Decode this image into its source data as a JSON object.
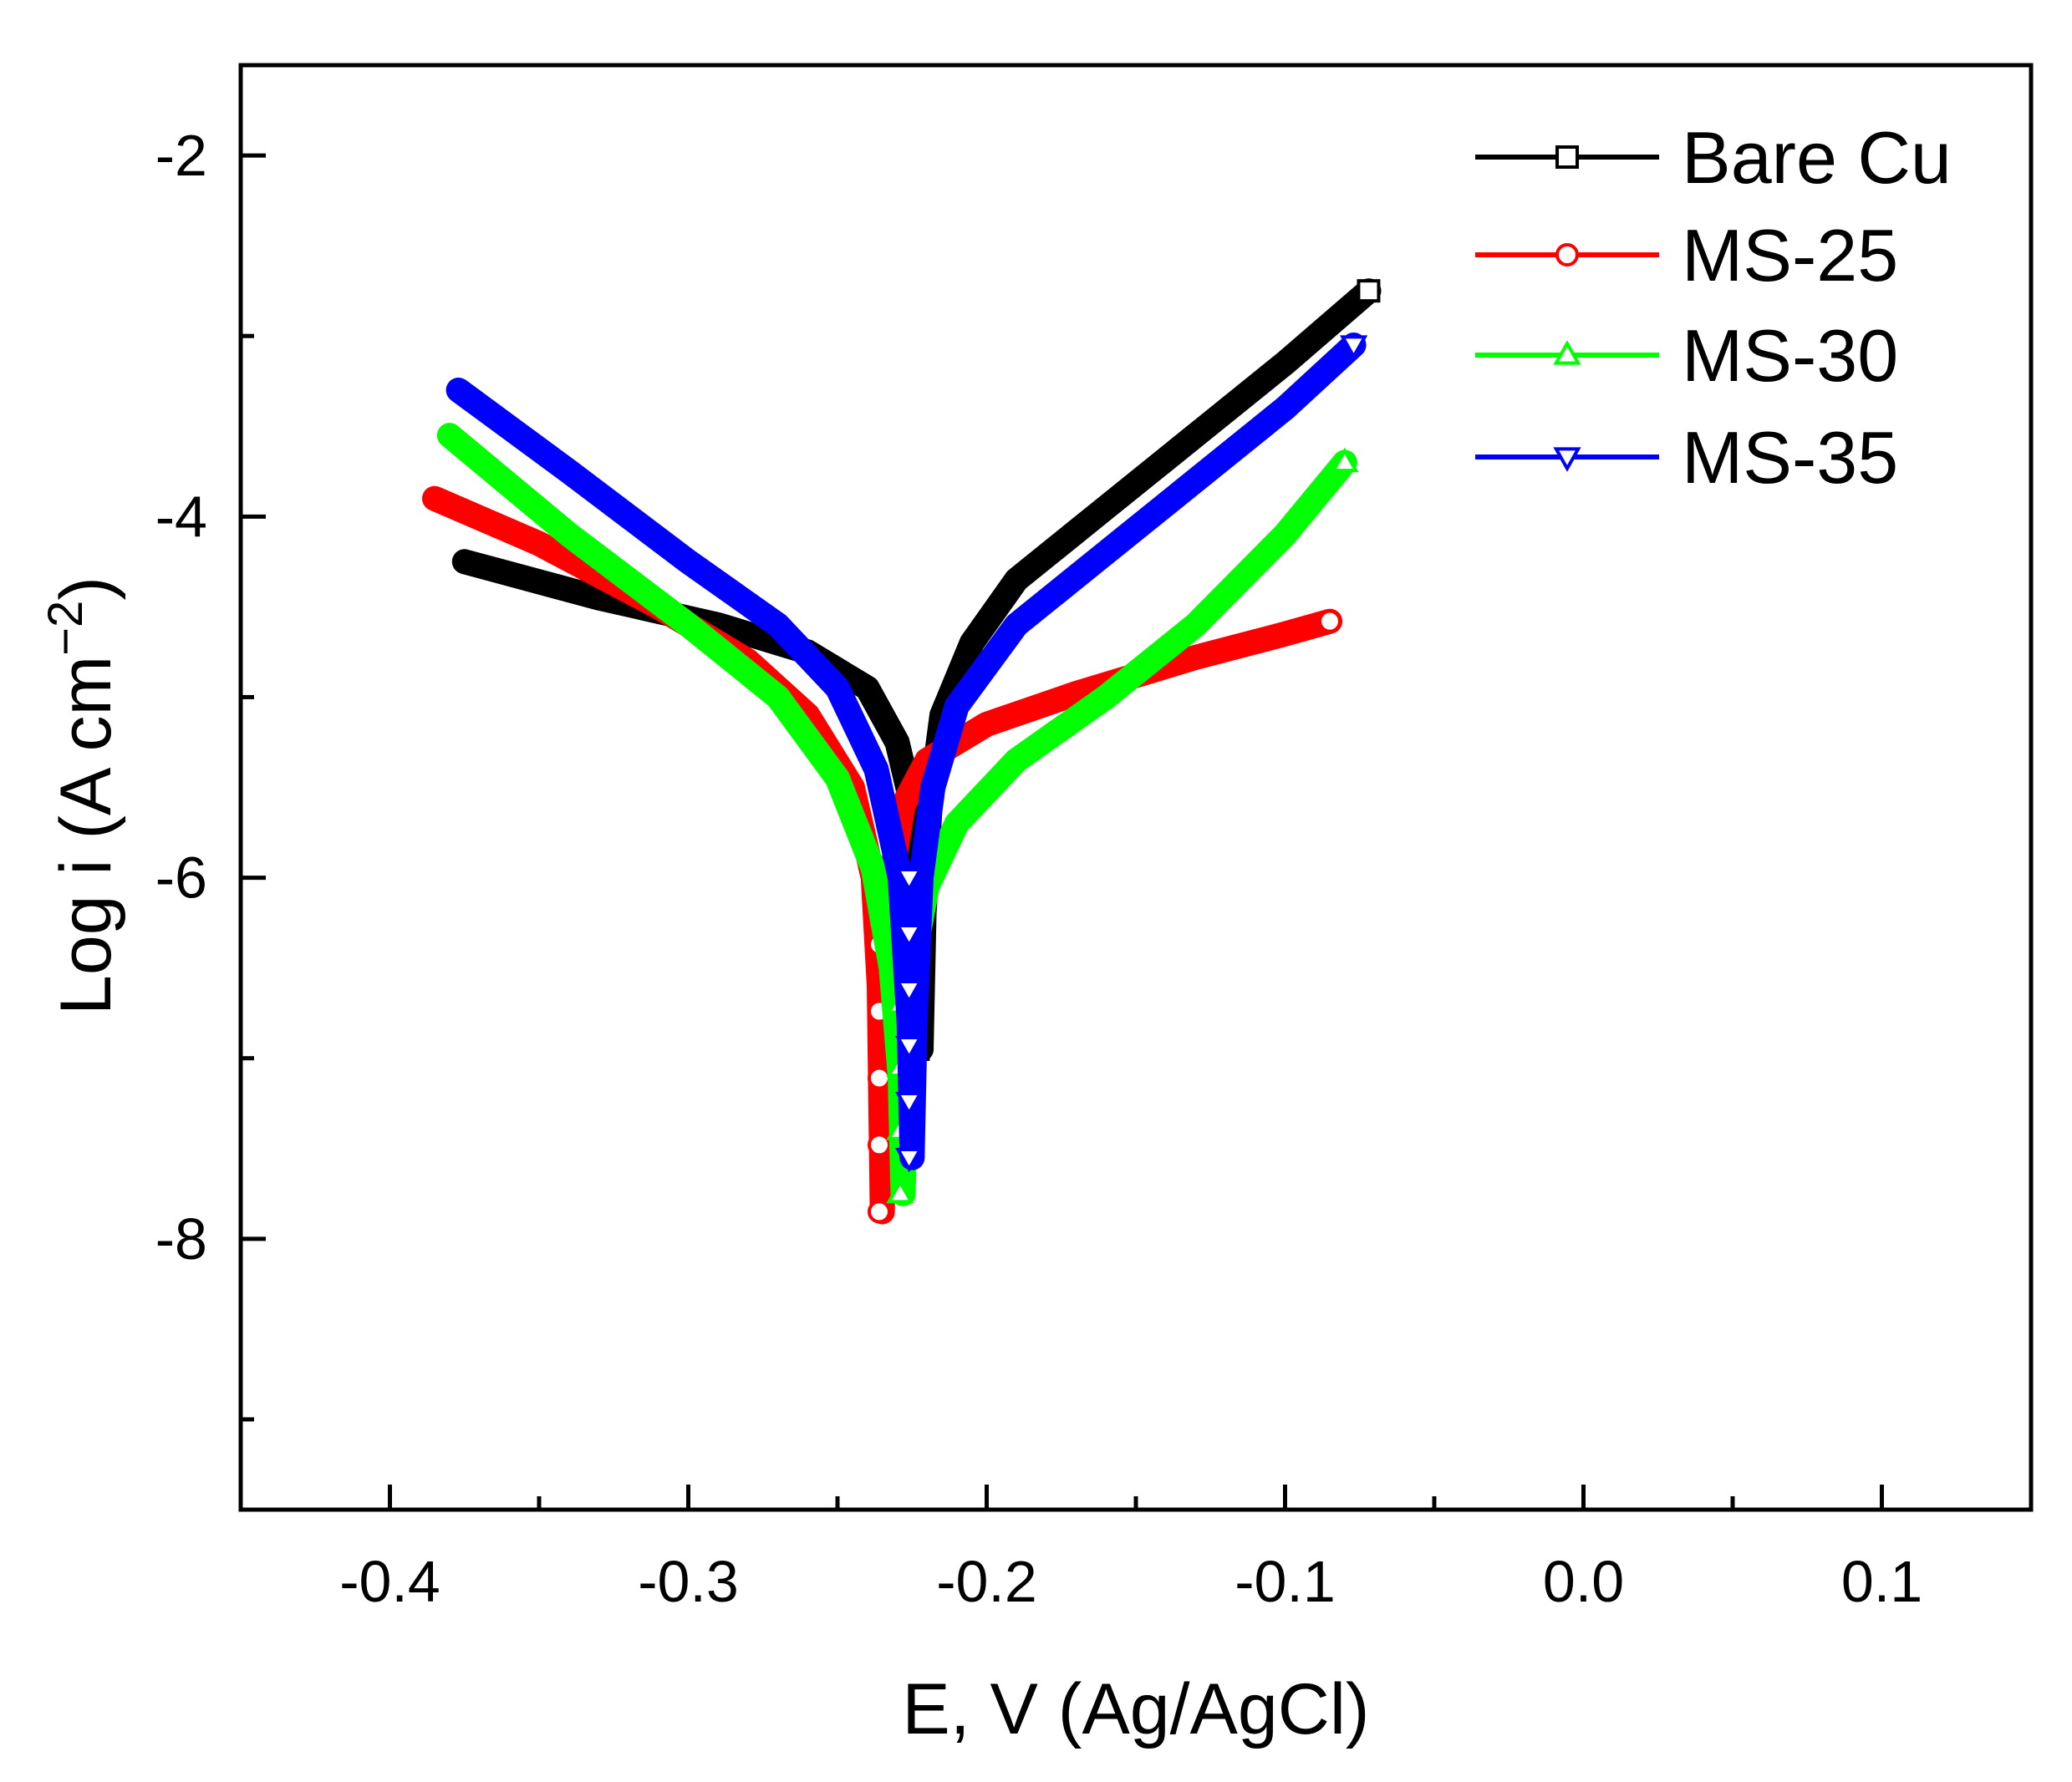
{
  "chart_data": {
    "type": "line",
    "title": "",
    "xlabel": "E, V (Ag/AgCl)",
    "ylabel_main": "Log i (A cm",
    "ylabel_sup": "−2",
    "ylabel_close": ")",
    "xlim": [
      -0.45,
      0.15
    ],
    "ylim": [
      -9.5,
      -1.5
    ],
    "xticks": [
      -0.4,
      -0.3,
      -0.2,
      -0.1,
      0.0,
      0.1
    ],
    "xtick_labels": [
      "-0.4",
      "-0.3",
      "-0.2",
      "-0.1",
      "0.0",
      "0.1"
    ],
    "yticks": [
      -2,
      -4,
      -6,
      -8
    ],
    "ytick_labels": [
      "-2",
      "-4",
      "-6",
      "-8"
    ],
    "legend_position": "top-right",
    "series": [
      {
        "name": "Bare Cu",
        "color": "#000000",
        "marker": "square",
        "ecorr": -0.222,
        "min_log_i": -6.95,
        "cathodic": [
          [
            -0.375,
            -4.25
          ],
          [
            -0.33,
            -4.45
          ],
          [
            -0.29,
            -4.6
          ],
          [
            -0.26,
            -4.75
          ],
          [
            -0.24,
            -4.95
          ],
          [
            -0.23,
            -5.25
          ],
          [
            -0.225,
            -5.6
          ],
          [
            -0.223,
            -6.2
          ],
          [
            -0.222,
            -6.95
          ]
        ],
        "anodic": [
          [
            -0.222,
            -6.95
          ],
          [
            -0.221,
            -6.2
          ],
          [
            -0.219,
            -5.6
          ],
          [
            -0.215,
            -5.1
          ],
          [
            -0.205,
            -4.7
          ],
          [
            -0.19,
            -4.35
          ],
          [
            -0.16,
            -3.95
          ],
          [
            -0.13,
            -3.55
          ],
          [
            -0.1,
            -3.15
          ],
          [
            -0.072,
            -2.75
          ]
        ]
      },
      {
        "name": "MS-25",
        "color": "#ff0000",
        "marker": "circle",
        "ecorr": -0.235,
        "min_log_i": -7.85,
        "cathodic": [
          [
            -0.385,
            -3.9
          ],
          [
            -0.35,
            -4.15
          ],
          [
            -0.31,
            -4.5
          ],
          [
            -0.28,
            -4.8
          ],
          [
            -0.26,
            -5.1
          ],
          [
            -0.245,
            -5.5
          ],
          [
            -0.238,
            -6.0
          ],
          [
            -0.236,
            -6.6
          ],
          [
            -0.235,
            -7.85
          ]
        ],
        "anodic": [
          [
            -0.235,
            -7.85
          ],
          [
            -0.234,
            -6.6
          ],
          [
            -0.232,
            -6.0
          ],
          [
            -0.228,
            -5.6
          ],
          [
            -0.22,
            -5.35
          ],
          [
            -0.2,
            -5.15
          ],
          [
            -0.17,
            -4.98
          ],
          [
            -0.13,
            -4.78
          ],
          [
            -0.1,
            -4.65
          ],
          [
            -0.085,
            -4.58
          ]
        ]
      },
      {
        "name": "MS-30",
        "color": "#00ff00",
        "marker": "triangle-up",
        "ecorr": -0.228,
        "min_log_i": -7.75,
        "cathodic": [
          [
            -0.38,
            -3.55
          ],
          [
            -0.34,
            -4.1
          ],
          [
            -0.3,
            -4.6
          ],
          [
            -0.27,
            -5.0
          ],
          [
            -0.25,
            -5.45
          ],
          [
            -0.238,
            -5.95
          ],
          [
            -0.232,
            -6.5
          ],
          [
            -0.229,
            -7.1
          ],
          [
            -0.228,
            -7.75
          ]
        ],
        "anodic": [
          [
            -0.228,
            -7.75
          ],
          [
            -0.227,
            -7.1
          ],
          [
            -0.225,
            -6.5
          ],
          [
            -0.22,
            -6.05
          ],
          [
            -0.21,
            -5.7
          ],
          [
            -0.19,
            -5.35
          ],
          [
            -0.16,
            -5.0
          ],
          [
            -0.13,
            -4.6
          ],
          [
            -0.1,
            -4.1
          ],
          [
            -0.08,
            -3.7
          ]
        ]
      },
      {
        "name": "MS-35",
        "color": "#0000ff",
        "marker": "triangle-down",
        "ecorr": -0.225,
        "min_log_i": -7.55,
        "cathodic": [
          [
            -0.377,
            -3.3
          ],
          [
            -0.34,
            -3.75
          ],
          [
            -0.3,
            -4.25
          ],
          [
            -0.27,
            -4.6
          ],
          [
            -0.25,
            -4.95
          ],
          [
            -0.237,
            -5.4
          ],
          [
            -0.229,
            -6.0
          ],
          [
            -0.226,
            -6.8
          ],
          [
            -0.225,
            -7.55
          ]
        ],
        "anodic": [
          [
            -0.225,
            -7.55
          ],
          [
            -0.224,
            -6.8
          ],
          [
            -0.222,
            -6.0
          ],
          [
            -0.218,
            -5.5
          ],
          [
            -0.21,
            -5.05
          ],
          [
            -0.19,
            -4.6
          ],
          [
            -0.16,
            -4.2
          ],
          [
            -0.13,
            -3.8
          ],
          [
            -0.1,
            -3.4
          ],
          [
            -0.077,
            -3.05
          ]
        ]
      }
    ]
  }
}
